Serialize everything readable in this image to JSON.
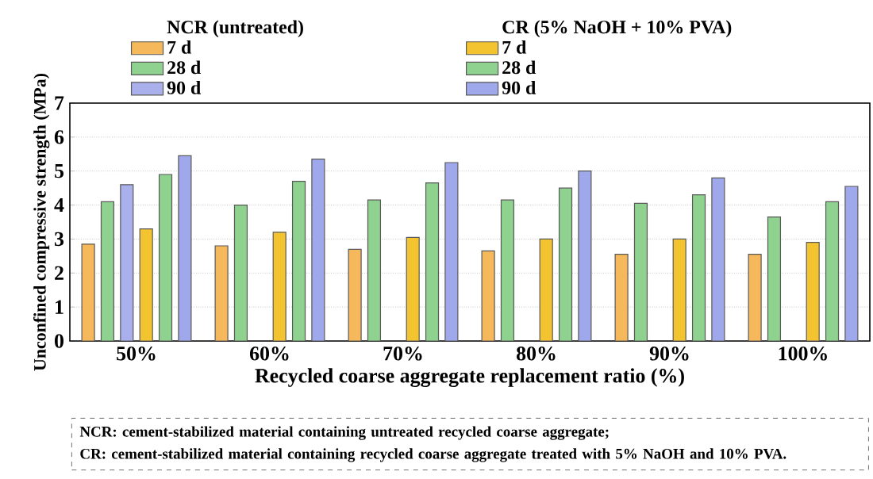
{
  "chart_data": {
    "type": "bar",
    "xlabel": "Recycled coarse aggregate replacement ratio (%)",
    "ylabel": "Unconfined compressive strength (MPa)",
    "legend_title": "NCR (untreated)",
    "categories": [
      "50%",
      "60%",
      "70%",
      "80%",
      "90%",
      "100%"
    ],
    "series": [
      {
        "name": "7 d",
        "color": "#f5b85a",
        "values": [
          2.85,
          2.8,
          2.7,
          2.65,
          2.55,
          2.55
        ]
      },
      {
        "name": "28 d",
        "color": "#8fd18f",
        "values": [
          4.1,
          4.0,
          4.15,
          4.15,
          4.05,
          3.65
        ]
      },
      {
        "name": "90 d",
        "color": "#a9b0ec",
        "values": [
          4.6,
          null,
          null,
          null,
          null,
          null
        ]
      },
      {
        "name": "7 d",
        "color": "#f4c430",
        "values": [
          3.3,
          3.2,
          3.05,
          3.0,
          3.0,
          2.9
        ]
      },
      {
        "name": "28 d",
        "color": "#8fd18f",
        "values": [
          4.9,
          4.7,
          4.65,
          4.5,
          4.3,
          4.1
        ]
      },
      {
        "name": "90 d",
        "color": "#a0a8ec",
        "values": [
          5.45,
          5.35,
          5.25,
          5.0,
          4.8,
          4.55
        ]
      }
    ],
    "ylim": [
      0,
      7
    ],
    "yticks": [
      0,
      1,
      2,
      3,
      4,
      5,
      6,
      7
    ],
    "grid": "y",
    "legend": "top",
    "annotations": [
      "CR (5% NaOH + 10% PVA)",
      "NCR: cement-stabilized material containing untreated recycled coarse aggregate;",
      "CR: cement-stabilized material containing recycled coarse aggregate treated with 5% NaOH and 10% PVA."
    ]
  }
}
